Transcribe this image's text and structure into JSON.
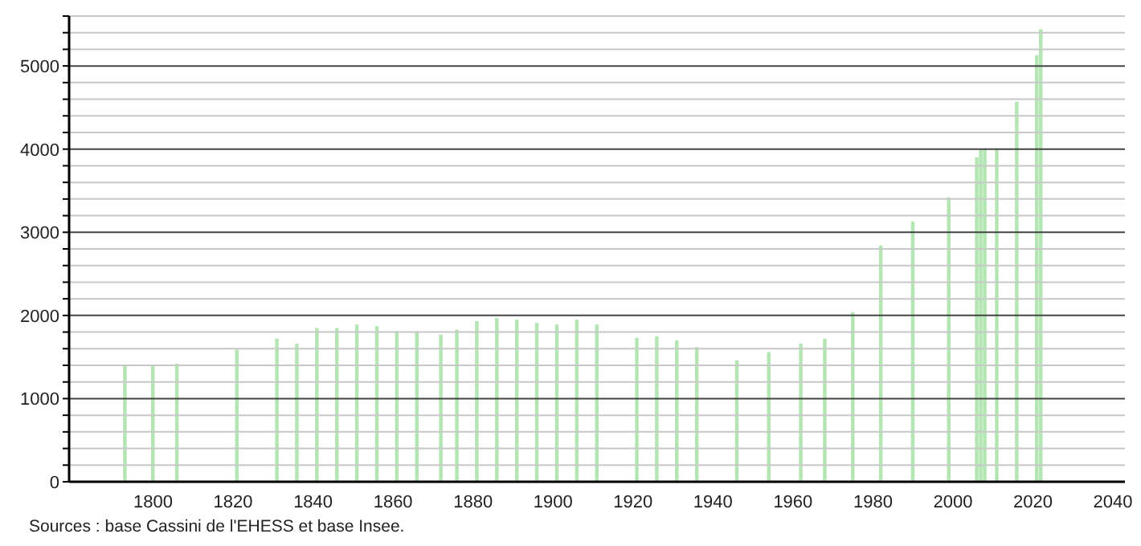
{
  "chart_data": {
    "type": "bar",
    "x": [
      1793,
      1800,
      1806,
      1821,
      1831,
      1836,
      1841,
      1846,
      1851,
      1856,
      1861,
      1866,
      1872,
      1876,
      1881,
      1886,
      1891,
      1896,
      1901,
      1906,
      1911,
      1921,
      1926,
      1931,
      1936,
      1946,
      1954,
      1962,
      1968,
      1975,
      1982,
      1990,
      1999,
      2006,
      2007,
      2008,
      2011,
      2016,
      2021,
      2022
    ],
    "values": [
      1400,
      1390,
      1420,
      1590,
      1720,
      1660,
      1850,
      1850,
      1890,
      1870,
      1810,
      1810,
      1770,
      1830,
      1930,
      1970,
      1950,
      1910,
      1890,
      1950,
      1890,
      1730,
      1750,
      1700,
      1620,
      1460,
      1560,
      1660,
      1720,
      2040,
      2840,
      3130,
      3420,
      3900,
      3990,
      4010,
      4010,
      4570,
      5130,
      5440
    ],
    "color": "#b3e6b3",
    "xlim": [
      1779,
      2043
    ],
    "xticks": [
      1800,
      1820,
      1840,
      1860,
      1880,
      1900,
      1920,
      1940,
      1960,
      1980,
      2000,
      2020,
      2040
    ],
    "ylim": [
      0,
      5600
    ],
    "yticks": [
      0,
      {
        "value": 200,
        "label": null
      },
      {
        "value": 400,
        "label": null
      },
      {
        "value": 600,
        "label": null
      },
      {
        "value": 800,
        "label": null
      },
      1000,
      {
        "value": 1200,
        "label": null
      },
      {
        "value": 1400,
        "label": null
      },
      {
        "value": 1600,
        "label": null
      },
      {
        "value": 1800,
        "label": null
      },
      2000,
      {
        "value": 2200,
        "label": null
      },
      {
        "value": 2400,
        "label": null
      },
      {
        "value": 2600,
        "label": null
      },
      {
        "value": 2800,
        "label": null
      },
      3000,
      {
        "value": 3200,
        "label": null
      },
      {
        "value": 3400,
        "label": null
      },
      {
        "value": 3600,
        "label": null
      },
      {
        "value": 3800,
        "label": null
      },
      4000,
      {
        "value": 4200,
        "label": null
      },
      {
        "value": 4400,
        "label": null
      },
      {
        "value": 4600,
        "label": null
      },
      {
        "value": 4800,
        "label": null
      },
      5000,
      {
        "value": 5200,
        "label": null
      },
      {
        "value": 5400,
        "label": null
      },
      {
        "value": 5600,
        "label": null
      }
    ],
    "grid": true,
    "annotations": [
      "Sources : base Cassini de l'EHESS et base Insee."
    ]
  }
}
